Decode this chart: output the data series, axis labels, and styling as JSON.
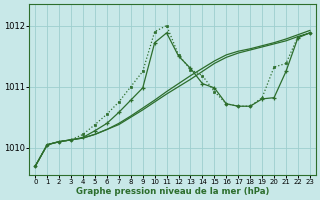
{
  "bg_color": "#c8e8e8",
  "grid_color": "#9ecece",
  "line_color": "#2d6e2d",
  "xlabel": "Graphe pression niveau de la mer (hPa)",
  "xlim": [
    -0.5,
    23.5
  ],
  "ylim": [
    1009.55,
    1012.35
  ],
  "x_ticks": [
    0,
    1,
    2,
    3,
    4,
    5,
    6,
    7,
    8,
    9,
    10,
    11,
    12,
    13,
    14,
    15,
    16,
    17,
    18,
    19,
    20,
    21,
    22,
    23
  ],
  "y_ticks": [
    1010,
    1011,
    1012
  ],
  "line_trend1_y": [
    1009.7,
    1010.05,
    1010.1,
    1010.13,
    1010.16,
    1010.22,
    1010.3,
    1010.38,
    1010.5,
    1010.62,
    1010.75,
    1010.88,
    1011.0,
    1011.12,
    1011.25,
    1011.38,
    1011.48,
    1011.55,
    1011.6,
    1011.65,
    1011.7,
    1011.75,
    1011.82,
    1011.88
  ],
  "line_trend2_y": [
    1009.7,
    1010.05,
    1010.1,
    1010.13,
    1010.16,
    1010.22,
    1010.3,
    1010.4,
    1010.52,
    1010.65,
    1010.78,
    1010.92,
    1011.05,
    1011.18,
    1011.3,
    1011.42,
    1011.52,
    1011.58,
    1011.62,
    1011.67,
    1011.72,
    1011.78,
    1011.85,
    1011.92
  ],
  "line_plus_y": [
    1009.7,
    1010.05,
    1010.1,
    1010.13,
    1010.17,
    1010.28,
    1010.4,
    1010.58,
    1010.78,
    1010.98,
    1011.72,
    1011.88,
    1011.5,
    1011.3,
    1011.05,
    1010.98,
    1010.72,
    1010.68,
    1010.68,
    1010.8,
    1010.82,
    1011.25,
    1011.8,
    1011.88
  ],
  "line_dot_y": [
    1009.7,
    1010.05,
    1010.1,
    1010.13,
    1010.22,
    1010.38,
    1010.55,
    1010.75,
    1011.0,
    1011.25,
    1011.9,
    1012.0,
    1011.52,
    1011.28,
    1011.18,
    1010.92,
    1010.72,
    1010.68,
    1010.68,
    1010.82,
    1011.32,
    1011.38,
    1011.82,
    1011.88
  ]
}
